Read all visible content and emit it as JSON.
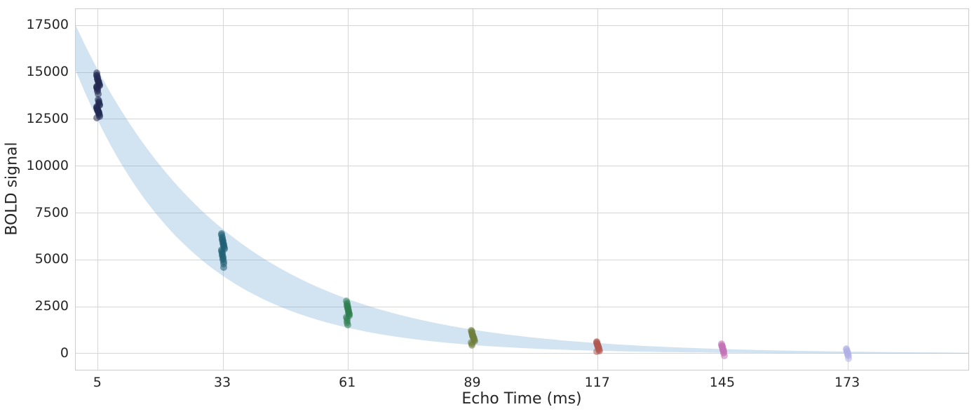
{
  "style": {
    "background": "#ffffff",
    "grid_color": "#d6d6d6",
    "spine_color": "#cccccc",
    "text_color": "#262626"
  },
  "chart_data": {
    "type": "scatter",
    "title": "",
    "xlabel": "Echo Time (ms)",
    "ylabel": "BOLD signal",
    "xlim": [
      0,
      200
    ],
    "ylim": [
      -861,
      18373
    ],
    "grid": true,
    "legend": "none",
    "x_ticks": [
      5,
      33,
      61,
      89,
      117,
      145,
      173
    ],
    "x_tick_labels": [
      "5",
      "33",
      "61",
      "89",
      "117",
      "145",
      "173"
    ],
    "y_ticks": [
      0,
      2500,
      5000,
      7500,
      10000,
      12500,
      15000,
      17500
    ],
    "y_tick_labels": [
      "0",
      "2500",
      "5000",
      "7500",
      "10000",
      "12500",
      "15000",
      "17500"
    ],
    "fit_band": {
      "model": "S0 * exp(-TE / T2star)",
      "upper": {
        "S0": 17500,
        "T2star_ms": 34.0
      },
      "lower": {
        "S0": 15100,
        "T2star_ms": 25.5
      },
      "te_range_ms": [
        0,
        200
      ],
      "fill_color_rgba": "rgba(95,155,203,0.28)"
    },
    "series": [
      {
        "name": "TE 5 ms",
        "x": 5,
        "color": "#222a52",
        "values": [
          14950,
          14870,
          14800,
          14740,
          14680,
          14620,
          14570,
          14520,
          14470,
          14420,
          14380,
          14340,
          14300,
          14260,
          14220,
          14180,
          14130,
          14070,
          14000,
          13860,
          13550,
          13470,
          13400,
          13340,
          13290,
          13240,
          13190,
          13150,
          13110,
          13070,
          13030,
          12990,
          12950,
          12910,
          12870,
          12830,
          12780,
          12720,
          12650,
          12560
        ]
      },
      {
        "name": "TE 33 ms",
        "x": 33,
        "color": "#1f5f73",
        "values": [
          6400,
          6310,
          6230,
          6150,
          6080,
          6010,
          5950,
          5890,
          5830,
          5770,
          5710,
          5650,
          5590,
          5530,
          5460,
          5390,
          5320,
          5250,
          5170,
          5090,
          5000,
          4900,
          4780,
          4620
        ]
      },
      {
        "name": "TE 61 ms",
        "x": 61,
        "color": "#2e7d4e",
        "values": [
          2800,
          2710,
          2630,
          2560,
          2500,
          2440,
          2380,
          2320,
          2260,
          2200,
          2140,
          2080,
          2010,
          1940,
          1860,
          1770,
          1660,
          1530
        ]
      },
      {
        "name": "TE 89 ms",
        "x": 89,
        "color": "#6f7d3d",
        "values": [
          1240,
          1180,
          1120,
          1070,
          1020,
          975,
          930,
          890,
          850,
          805,
          760,
          710,
          655,
          590,
          515,
          435
        ]
      },
      {
        "name": "TE 117 ms",
        "x": 117,
        "color": "#b15a52",
        "values": [
          640,
          595,
          550,
          510,
          470,
          435,
          400,
          365,
          330,
          290,
          250,
          205,
          150,
          95
        ]
      },
      {
        "name": "TE 145 ms",
        "x": 145,
        "color": "#c372b7",
        "values": [
          520,
          465,
          415,
          370,
          325,
          280,
          235,
          190,
          140,
          85,
          20,
          -100
        ]
      },
      {
        "name": "TE 173 ms",
        "x": 173,
        "color": "#b1b0e5",
        "values": [
          280,
          215,
          160,
          110,
          65,
          20,
          -25,
          -75,
          -130,
          -255
        ]
      }
    ]
  }
}
